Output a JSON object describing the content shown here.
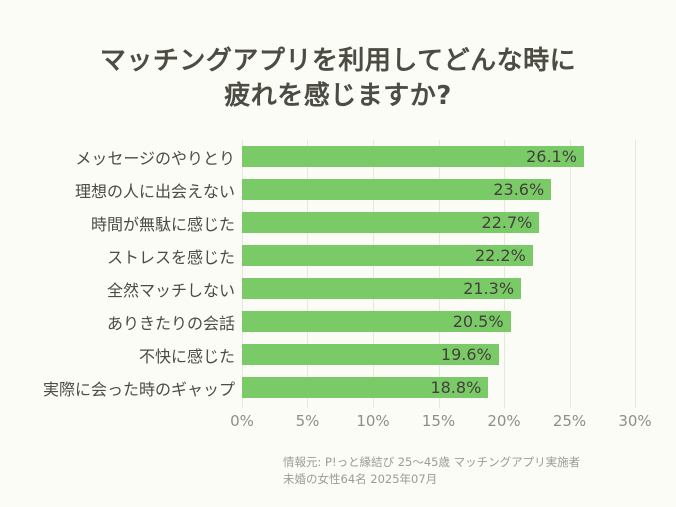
{
  "title": {
    "line1": "マッチングアプリを利用してどんな時に",
    "line2": "疲れを感じますか?"
  },
  "chart_data": {
    "type": "bar",
    "orientation": "horizontal",
    "title": "マッチングアプリを利用してどんな時に疲れを感じますか?",
    "categories": [
      "メッセージのやりとり",
      "理想の人に出会えない",
      "時間が無駄に感じた",
      "ストレスを感じた",
      "全然マッチしない",
      "ありきたりの会話",
      "不快に感じた",
      "実際に会った時のギャップ"
    ],
    "values": [
      26.1,
      23.6,
      22.7,
      22.2,
      21.3,
      20.5,
      19.6,
      18.8
    ],
    "value_labels": [
      "26.1%",
      "23.6%",
      "22.7%",
      "22.2%",
      "21.3%",
      "20.5%",
      "19.6%",
      "18.8%"
    ],
    "x_ticks": [
      "0%",
      "5%",
      "10%",
      "15%",
      "20%",
      "25%",
      "30%"
    ],
    "xlim": [
      0,
      30
    ],
    "xlabel": "",
    "ylabel": "",
    "grid": true,
    "legend": false,
    "bar_color": "#7bca68"
  },
  "footer": {
    "line1": "情報元: P!っと縁結び 25〜45歳 マッチングアプリ実施者",
    "line2": "未婚の女性64名 2025年07月"
  },
  "colors": {
    "background": "#fcfcf6",
    "bar": "#7bca68",
    "title_text": "#4c4c44",
    "label_text": "#4c4c44",
    "value_text": "#42423b",
    "tick_text": "#8f8f87",
    "footer_text": "#9c9c94",
    "gridline": "#e7e7df"
  }
}
